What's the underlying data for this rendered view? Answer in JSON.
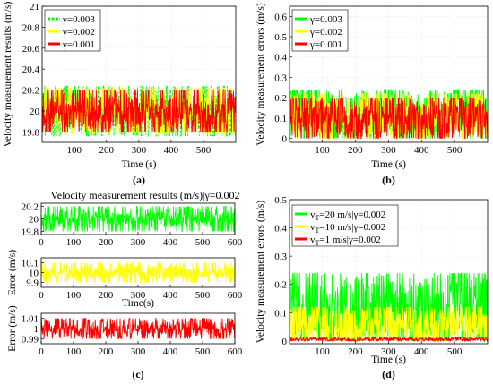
{
  "chart_data": [
    {
      "id": "a",
      "type": "line",
      "panel_label": "(a)",
      "title": "",
      "xlabel": "Time (s)",
      "ylabel": "Velocity measurement results (m/s)",
      "xlim": [
        1,
        600
      ],
      "ylim": [
        19.7,
        21
      ],
      "xticks": [
        "100",
        "200",
        "300",
        "400",
        "500"
      ],
      "yticks": [
        "19.8",
        "20",
        "20.2",
        "20.4",
        "20.6",
        "20.8",
        "21"
      ],
      "grid": true,
      "legend_position": "top-left",
      "series": [
        {
          "name": "γ=0.003",
          "color": "#00ff00",
          "center": 20,
          "amplitude": 0.24,
          "style": "dashed"
        },
        {
          "name": "γ=0.002",
          "color": "#ffff00",
          "center": 20,
          "amplitude": 0.22,
          "style": "solid"
        },
        {
          "name": "γ=0.001",
          "color": "#ff0000",
          "center": 20,
          "amplitude": 0.2,
          "style": "solid"
        }
      ]
    },
    {
      "id": "b",
      "type": "line",
      "panel_label": "(b)",
      "title": "",
      "xlabel": "Time (s)",
      "ylabel": "Velocity measurement errors (m/s)",
      "xlim": [
        1,
        600
      ],
      "ylim": [
        -0.02,
        0.65
      ],
      "xticks": [
        "100",
        "200",
        "300",
        "400",
        "500"
      ],
      "yticks": [
        "0",
        "0.1",
        "0.2",
        "0.3",
        "0.4",
        "0.5",
        "0.6"
      ],
      "grid": true,
      "legend_position": "top-left",
      "series": [
        {
          "name": "γ=0.003",
          "color": "#00ff00",
          "center": 0.12,
          "amplitude": 0.12,
          "style": "solid"
        },
        {
          "name": "γ=0.002",
          "color": "#ffff00",
          "center": 0.11,
          "amplitude": 0.11,
          "style": "solid"
        },
        {
          "name": "γ=0.001",
          "color": "#ff0000",
          "center": 0.1,
          "amplitude": 0.1,
          "style": "solid"
        }
      ]
    },
    {
      "id": "c1",
      "type": "line",
      "panel_label": "",
      "title": "Velocity measurement results (m/s)|γ=0.002",
      "xlabel": "",
      "ylabel": "",
      "xlim": [
        0,
        600
      ],
      "ylim": [
        19.75,
        20.25
      ],
      "xticks": [
        "0",
        "100",
        "200",
        "300",
        "400",
        "500",
        "600"
      ],
      "yticks": [
        "19.8",
        "20",
        "20.2"
      ],
      "grid": false,
      "series": [
        {
          "name": "",
          "color": "#00ff00",
          "center": 20,
          "amplitude": 0.2,
          "style": "solid"
        }
      ]
    },
    {
      "id": "c2",
      "type": "line",
      "panel_label": "",
      "title": "",
      "xlabel": "Time(s)",
      "ylabel": "Error (m/s)",
      "xlim": [
        0,
        600
      ],
      "ylim": [
        9.85,
        10.15
      ],
      "xticks": [
        "0",
        "100",
        "200",
        "300",
        "400",
        "500",
        "600"
      ],
      "yticks": [
        "9.9",
        "10",
        "10.1"
      ],
      "grid": false,
      "series": [
        {
          "name": "",
          "color": "#ffff00",
          "center": 10,
          "amplitude": 0.1,
          "style": "solid"
        }
      ]
    },
    {
      "id": "c3",
      "type": "line",
      "panel_label": "(c)",
      "title": "",
      "xlabel": "",
      "ylabel": "Error (m/s)",
      "xlim": [
        0,
        600
      ],
      "ylim": [
        0.985,
        1.015
      ],
      "xticks": [
        "0",
        "100",
        "200",
        "300",
        "400",
        "500",
        "600"
      ],
      "yticks": [
        "0.99",
        "1",
        "1.01"
      ],
      "grid": false,
      "series": [
        {
          "name": "",
          "color": "#ff0000",
          "center": 1,
          "amplitude": 0.01,
          "style": "solid"
        }
      ]
    },
    {
      "id": "d",
      "type": "line",
      "panel_label": "(d)",
      "title": "",
      "xlabel": "Time (s)",
      "ylabel": "Velocity measurement errors (m/s)",
      "xlim": [
        1,
        600
      ],
      "ylim": [
        -0.01,
        0.5
      ],
      "xticks": [
        "100",
        "200",
        "300",
        "400",
        "500"
      ],
      "yticks": [
        "0",
        "0.1",
        "0.2",
        "0.3",
        "0.4",
        "0.5"
      ],
      "grid": true,
      "legend_position": "top-left",
      "series": [
        {
          "name": "v",
          "name_sub": "T",
          "name_rest": "=20 m/s|γ=0.002",
          "color": "#00ff00",
          "center": 0.12,
          "amplitude": 0.12,
          "style": "solid"
        },
        {
          "name": "v",
          "name_sub": "T",
          "name_rest": "=10 m/s|γ=0.002",
          "color": "#ffff00",
          "center": 0.06,
          "amplitude": 0.06,
          "style": "solid"
        },
        {
          "name": "v",
          "name_sub": "T",
          "name_rest": "=1 m/s|γ=0.002",
          "color": "#ff0000",
          "center": 0.006,
          "amplitude": 0.006,
          "style": "solid"
        }
      ]
    }
  ]
}
